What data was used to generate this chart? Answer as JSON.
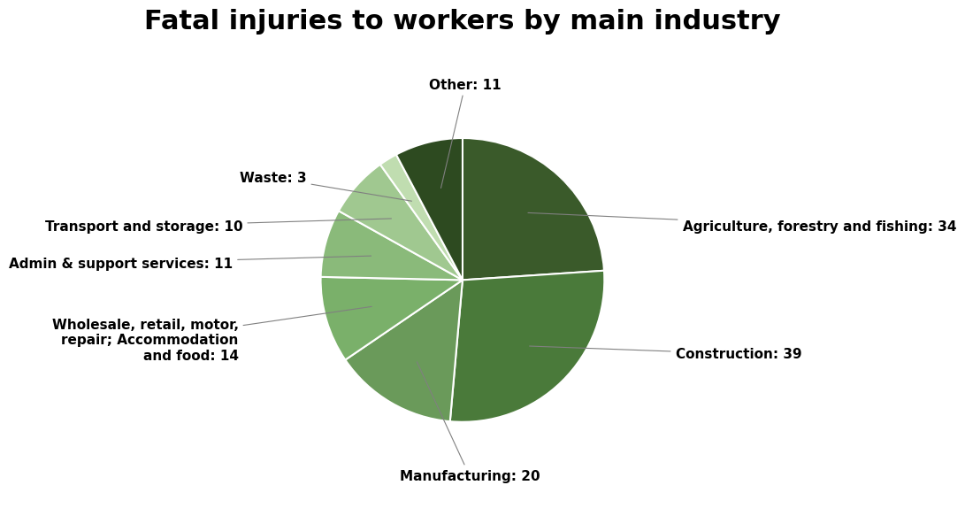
{
  "title": "Fatal injuries to workers by main industry",
  "slices": [
    {
      "label": "Agriculture, forestry and fishing: 34",
      "value": 34,
      "color": "#3a5a2a"
    },
    {
      "label": "Construction: 39",
      "value": 39,
      "color": "#4a7a3a"
    },
    {
      "label": "Manufacturing: 20",
      "value": 20,
      "color": "#6a9a5a"
    },
    {
      "label": "Wholesale, retail, motor,\nrepair; Accommodation\nand food: 14",
      "value": 14,
      "color": "#7ab06a"
    },
    {
      "label": "Admin & support services: 11",
      "value": 11,
      "color": "#8aba7a"
    },
    {
      "label": "Transport and storage: 10",
      "value": 10,
      "color": "#a0c890"
    },
    {
      "label": "Waste: 3",
      "value": 3,
      "color": "#c0ddb0"
    },
    {
      "label": "Other: 11",
      "value": 11,
      "color": "#2d4a20"
    }
  ],
  "title_fontsize": 22,
  "label_fontsize": 11,
  "background_color": "#ffffff",
  "wedge_edge_color": "#ffffff",
  "startangle": 90
}
